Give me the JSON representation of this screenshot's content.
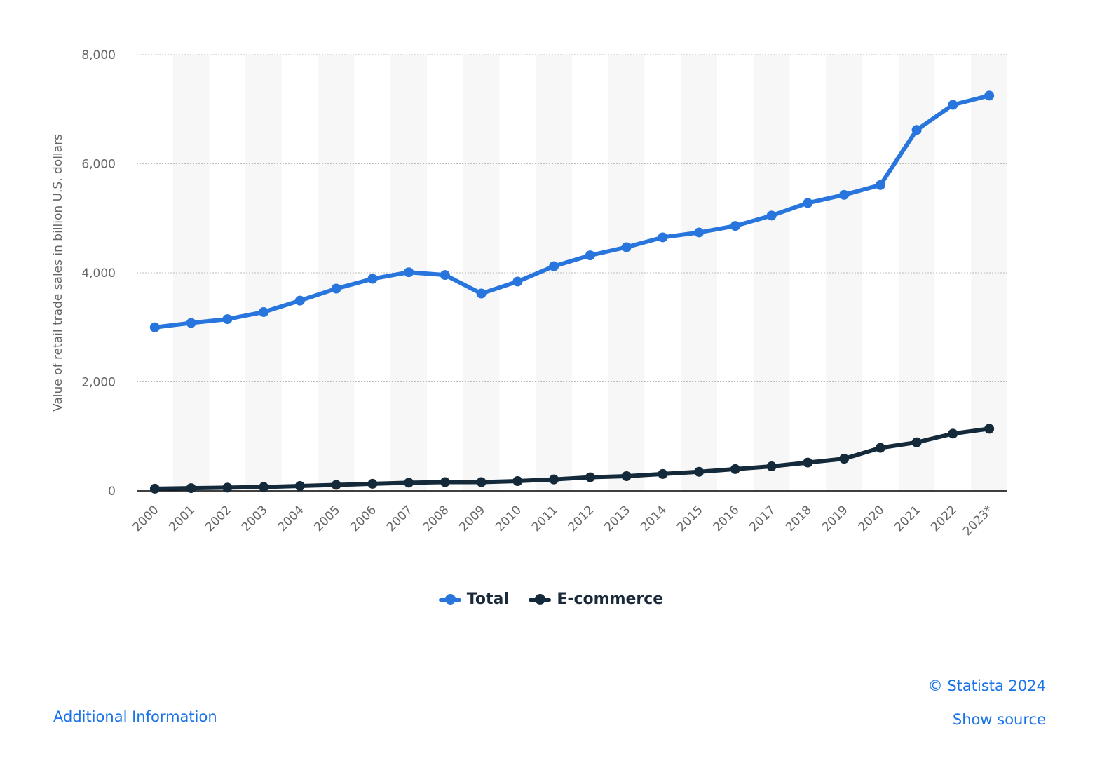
{
  "chart_data": {
    "type": "line",
    "categories": [
      "2000",
      "2001",
      "2002",
      "2003",
      "2004",
      "2005",
      "2006",
      "2007",
      "2008",
      "2009",
      "2010",
      "2011",
      "2012",
      "2013",
      "2014",
      "2015",
      "2016",
      "2017",
      "2018",
      "2019",
      "2020",
      "2021",
      "2022",
      "2023*"
    ],
    "series": [
      {
        "name": "Total",
        "color": "#2876dd",
        "values": [
          3000,
          3080,
          3150,
          3280,
          3490,
          3710,
          3890,
          4010,
          3960,
          3620,
          3840,
          4120,
          4320,
          4470,
          4650,
          4740,
          4860,
          5050,
          5280,
          5430,
          5610,
          6620,
          7080,
          7250
        ]
      },
      {
        "name": "E-commerce",
        "color": "#142a3b",
        "values": [
          40,
          50,
          60,
          70,
          90,
          110,
          130,
          150,
          160,
          160,
          180,
          210,
          250,
          270,
          310,
          350,
          400,
          450,
          520,
          590,
          790,
          890,
          1050,
          1140
        ]
      }
    ],
    "ylabel": "Value of retail trade sales in billion U.S. dollars",
    "xlabel": "",
    "ylim": [
      0,
      8000
    ],
    "yticks": [
      0,
      2000,
      4000,
      6000,
      8000
    ],
    "ytick_labels": [
      "0",
      "2,000",
      "4,000",
      "6,000",
      "8,000"
    ],
    "grid": true,
    "legend_position": "bottom"
  },
  "footer": {
    "copyright": "© Statista 2024",
    "additional_info": "Additional Information",
    "show_source": "Show source"
  }
}
